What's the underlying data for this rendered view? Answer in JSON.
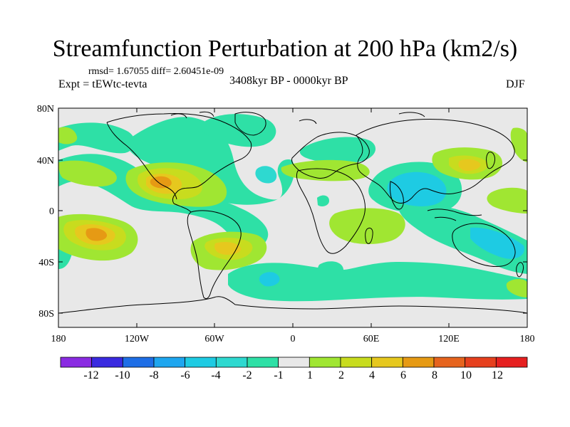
{
  "title": "Streamfunction Perturbation at 200 hPa (km2/s)",
  "stats": "rmsd= 1.67055 diff= 2.60451e-09",
  "experiment": "Expt = tEWtc-tevta",
  "period": "3408kyr BP - 0000kyr BP",
  "season": "DJF",
  "axes": {
    "y_ticks": [
      "80N",
      "40N",
      "0",
      "40S",
      "80S"
    ],
    "x_ticks": [
      "180",
      "120W",
      "60W",
      "0",
      "60E",
      "120E",
      "180"
    ]
  },
  "colorbar": {
    "colors": [
      "#8a2be2",
      "#3a2ae0",
      "#1e6ee6",
      "#1ea6ef",
      "#1ecbe3",
      "#2ed9d0",
      "#2ee0a6",
      "#e8e8e8",
      "#a0e632",
      "#c8dc1e",
      "#e6c81e",
      "#e69a14",
      "#e6641e",
      "#e6401e",
      "#e62020"
    ],
    "labels": [
      "-12",
      "-10",
      "-8",
      "-6",
      "-4",
      "-2",
      "-1",
      "1",
      "2",
      "4",
      "6",
      "8",
      "10",
      "12"
    ]
  },
  "palette": {
    "background_field": "#e8e8e8",
    "neg_light": "#2ee0a6",
    "neg_mid": "#2ed9d0",
    "neg_strong": "#1ecbe3",
    "pos_light": "#a0e632",
    "pos_mid": "#c8dc1e",
    "pos_strong": "#e6c81e",
    "pos_stronger": "#e69a14"
  }
}
